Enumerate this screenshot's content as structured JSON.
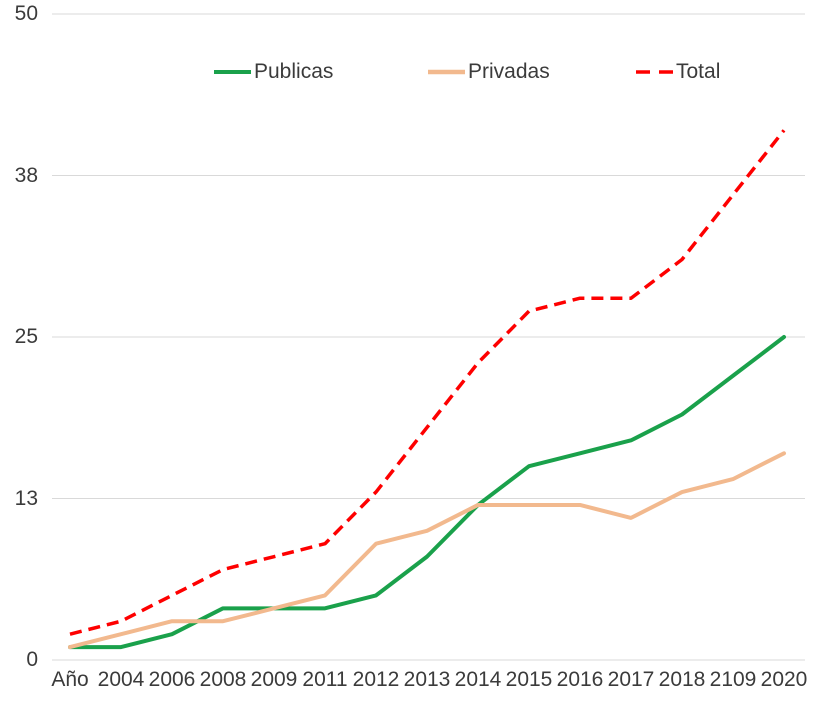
{
  "chart_data": {
    "type": "line",
    "title": "",
    "xlabel": "",
    "ylabel": "",
    "ylim": [
      0,
      50
    ],
    "grid": "horizontal",
    "legend_position": "top",
    "categories": [
      "Año",
      "2004",
      "2006",
      "2008",
      "2009",
      "2011",
      "2012",
      "2013",
      "2014",
      "2015",
      "2016",
      "2017",
      "2018",
      "2109",
      "2020"
    ],
    "series": [
      {
        "name": "Publicas",
        "color": "#1aa14b",
        "style": "solid",
        "values": [
          1,
          1,
          2,
          4,
          4,
          4,
          5,
          8,
          12,
          15,
          16,
          17,
          19,
          22,
          25
        ]
      },
      {
        "name": "Privadas",
        "color": "#f2b98e",
        "style": "solid",
        "values": [
          1,
          2,
          3,
          3,
          4,
          5,
          9,
          10,
          12,
          12,
          12,
          11,
          13,
          14,
          16
        ]
      },
      {
        "name": "Total",
        "color": "#fe0000",
        "style": "dashed",
        "values": [
          2,
          3,
          5,
          7,
          8,
          9,
          13,
          18,
          23,
          27,
          28,
          28,
          31,
          36,
          41
        ]
      }
    ],
    "y_ticks": [
      {
        "label": "0",
        "value": 0
      },
      {
        "label": "13",
        "value": 12.5
      },
      {
        "label": "25",
        "value": 25
      },
      {
        "label": "38",
        "value": 37.5
      },
      {
        "label": "50",
        "value": 50
      }
    ]
  },
  "colors": {
    "background": "#ffffff",
    "grid": "#d9d9d9",
    "text": "#3b3b3b"
  }
}
